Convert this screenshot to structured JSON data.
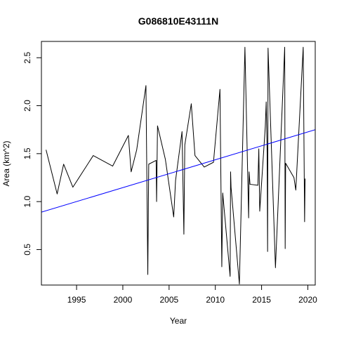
{
  "chart_data": {
    "type": "line",
    "title": "G086810E43111N",
    "xlabel": "Year",
    "ylabel": "Area (km^2)",
    "xlim": [
      1991.2,
      2020.8
    ],
    "ylim": [
      0.13,
      2.67
    ],
    "x_ticks": [
      1995,
      2000,
      2005,
      2010,
      2015,
      2020
    ],
    "y_ticks": [
      0.5,
      1.0,
      1.5,
      2.0,
      2.5
    ],
    "x_tick_labels": [
      "1995",
      "2000",
      "2005",
      "2010",
      "2015",
      "2020"
    ],
    "y_tick_labels": [
      "0.5",
      "1.0",
      "1.5",
      "2.0",
      "2.5"
    ],
    "grid": false,
    "series": [
      {
        "color": "#000000",
        "x": [
          1991.7,
          1992.9,
          1993.6,
          1994.6,
          1996.8,
          1998.9,
          2000.6,
          2000.9,
          2001.5,
          2002.5,
          2002.7,
          2002.8,
          2003.6,
          2003.65,
          2003.75,
          2004.6,
          2005.5,
          2005.7,
          2006.4,
          2006.6,
          2006.7,
          2007.4,
          2007.8,
          2008.8,
          2009.8,
          2010.5,
          2010.7,
          2010.8,
          2011.6,
          2011.65,
          2011.7,
          2012.6,
          2013.2,
          2013.6,
          2013.65,
          2013.75,
          2013.8,
          2014.6,
          2014.7,
          2014.8,
          2015.4,
          2015.5,
          2015.6,
          2015.65,
          2015.7,
          2016.5,
          2017.5,
          2017.55,
          2017.6,
          2018.5,
          2018.7,
          2019.5,
          2019.6,
          2019.65,
          2019.7
        ],
        "y": [
          1.54,
          1.08,
          1.39,
          1.15,
          1.48,
          1.37,
          1.69,
          1.31,
          1.54,
          2.21,
          0.24,
          1.39,
          1.43,
          1.0,
          1.79,
          1.44,
          0.84,
          1.22,
          1.73,
          0.66,
          1.59,
          2.02,
          1.48,
          1.36,
          1.41,
          2.17,
          0.32,
          1.09,
          0.22,
          1.31,
          1.15,
          0.14,
          2.61,
          0.83,
          1.31,
          1.18,
          1.18,
          1.17,
          1.55,
          0.9,
          1.78,
          2.04,
          1.51,
          0.48,
          2.6,
          0.31,
          2.61,
          0.51,
          1.4,
          1.25,
          1.12,
          2.61,
          1.4,
          0.79,
          1.24
        ]
      },
      {
        "color": "#0000ff",
        "x": [
          1991.2,
          2020.8
        ],
        "y": [
          0.89,
          1.75
        ]
      }
    ]
  }
}
